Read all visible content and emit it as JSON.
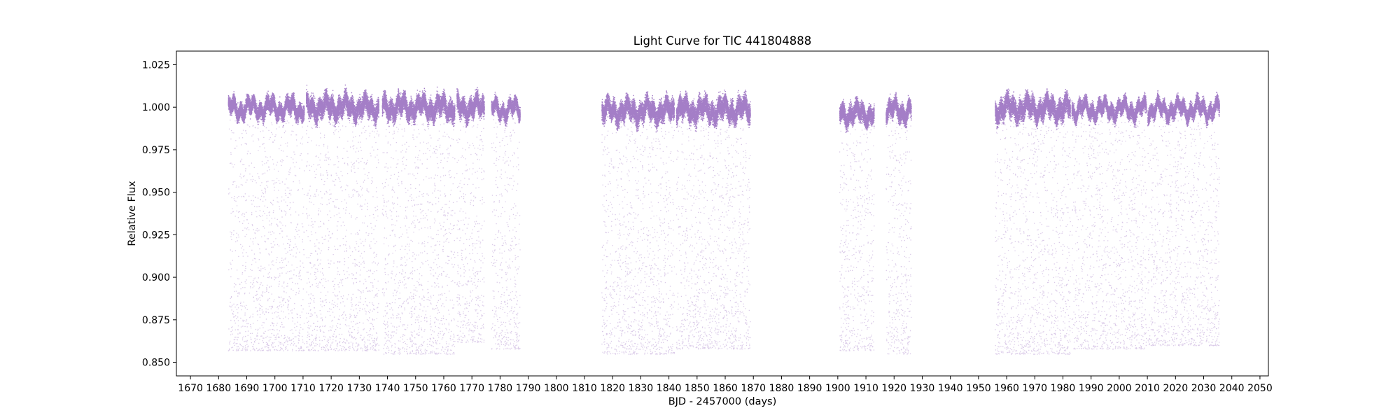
{
  "chart_data": {
    "type": "scatter",
    "title": "Light Curve for TIC 441804888",
    "xlabel": "BJD - 2457000 (days)",
    "ylabel": "Relative Flux",
    "xlim": [
      1665,
      2053
    ],
    "ylim": [
      0.842,
      1.033
    ],
    "xticks": [
      1670,
      1680,
      1690,
      1700,
      1710,
      1720,
      1730,
      1740,
      1750,
      1760,
      1770,
      1780,
      1790,
      1800,
      1810,
      1820,
      1830,
      1840,
      1850,
      1860,
      1870,
      1880,
      1890,
      1900,
      1910,
      1920,
      1930,
      1940,
      1950,
      1960,
      1970,
      1980,
      1990,
      2000,
      2010,
      2020,
      2030,
      2040,
      2050
    ],
    "yticks": [
      0.85,
      0.875,
      0.9,
      0.925,
      0.95,
      0.975,
      1.0,
      1.025
    ],
    "ytick_labels": [
      "0.850",
      "0.875",
      "0.900",
      "0.925",
      "0.950",
      "0.975",
      "1.000",
      "1.025"
    ],
    "grid": false,
    "marker_color": "#9467bd",
    "series": [
      {
        "segments": [
          {
            "start": 1683.3,
            "end": 1710.3,
            "flux_band": [
              0.993,
              1.006
            ],
            "dip_floor": 0.857
          },
          {
            "start": 1711.0,
            "end": 1736.8,
            "flux_band": [
              0.992,
              1.008
            ],
            "dip_floor": 0.857
          },
          {
            "start": 1738.0,
            "end": 1763.8,
            "flux_band": [
              0.992,
              1.008
            ],
            "dip_floor": 0.855
          },
          {
            "start": 1764.5,
            "end": 1774.3,
            "flux_band": [
              0.992,
              1.008
            ],
            "dip_floor": 0.862
          },
          {
            "start": 1776.8,
            "end": 1787.0,
            "flux_band": [
              0.993,
              1.005
            ],
            "dip_floor": 0.858
          },
          {
            "start": 1816.0,
            "end": 1841.8,
            "flux_band": [
              0.99,
              1.006
            ],
            "dip_floor": 0.855
          },
          {
            "start": 1842.5,
            "end": 1868.8,
            "flux_band": [
              0.99,
              1.007
            ],
            "dip_floor": 0.858
          },
          {
            "start": 1900.5,
            "end": 1912.8,
            "flux_band": [
              0.989,
              1.004
            ],
            "dip_floor": 0.857
          },
          {
            "start": 1917.0,
            "end": 1926.0,
            "flux_band": [
              0.991,
              1.005
            ],
            "dip_floor": 0.855
          },
          {
            "start": 1955.8,
            "end": 1982.5,
            "flux_band": [
              0.991,
              1.008
            ],
            "dip_floor": 0.855
          },
          {
            "start": 1983.0,
            "end": 2009.5,
            "flux_band": [
              0.993,
              1.005
            ],
            "dip_floor": 0.858
          },
          {
            "start": 2010.0,
            "end": 2035.5,
            "flux_band": [
              0.993,
              1.005
            ],
            "dip_floor": 0.86
          }
        ]
      }
    ]
  }
}
